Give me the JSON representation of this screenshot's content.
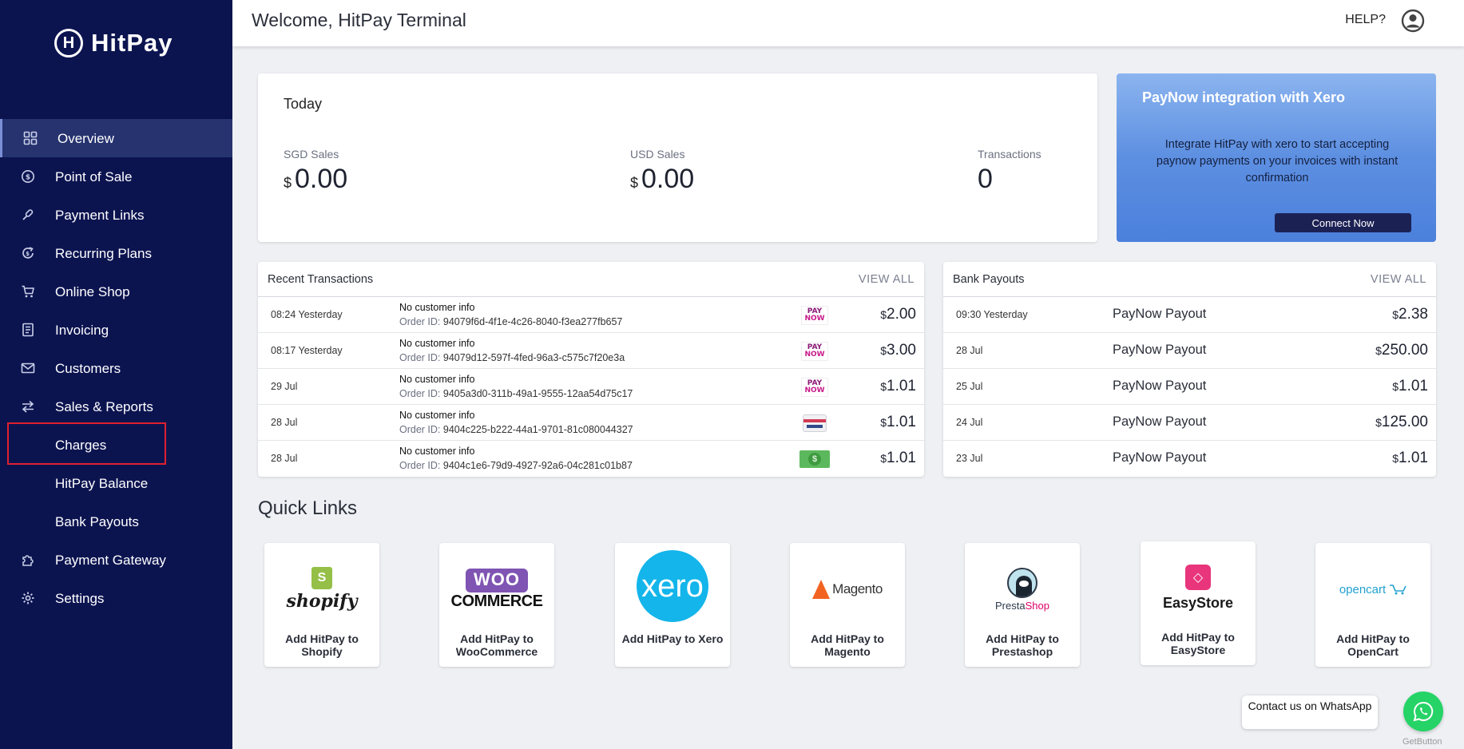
{
  "brand": {
    "name": "HitPay",
    "mark": "H"
  },
  "sidebar": {
    "items": [
      {
        "label": "Overview",
        "icon": "grid-icon",
        "active": true
      },
      {
        "label": "Point of Sale",
        "icon": "dollar-circle-icon"
      },
      {
        "label": "Payment Links",
        "icon": "link-icon"
      },
      {
        "label": "Recurring Plans",
        "icon": "recurring-icon"
      },
      {
        "label": "Online Shop",
        "icon": "cart-icon"
      },
      {
        "label": "Invoicing",
        "icon": "invoice-icon"
      },
      {
        "label": "Customers",
        "icon": "envelope-icon"
      },
      {
        "label": "Sales & Reports",
        "icon": "arrows-icon"
      },
      {
        "label": "Charges",
        "icon": "",
        "highlighted": true
      },
      {
        "label": "HitPay Balance",
        "icon": ""
      },
      {
        "label": "Bank Payouts",
        "icon": ""
      },
      {
        "label": "Payment Gateway",
        "icon": "puzzle-icon"
      },
      {
        "label": "Settings",
        "icon": "gear-icon"
      }
    ]
  },
  "header": {
    "title": "Welcome, HitPay Terminal",
    "help": "HELP?",
    "avatar_icon": "user-circle-icon"
  },
  "today": {
    "title": "Today",
    "stats": [
      {
        "label": "SGD Sales",
        "currency": "$",
        "value": "0.00"
      },
      {
        "label": "USD Sales",
        "currency": "$",
        "value": "0.00"
      },
      {
        "label": "Transactions",
        "currency": "",
        "value": "0"
      }
    ]
  },
  "promo": {
    "title": "PayNow integration with Xero",
    "body": "Integrate HitPay with xero to start accepting paynow payments on your invoices with instant confirmation",
    "button": "Connect Now"
  },
  "transactions": {
    "title": "Recent Transactions",
    "view_all": "VIEW ALL",
    "order_prefix": "Order ID:",
    "rows": [
      {
        "time": "08:24 Yesterday",
        "customer": "No customer info",
        "order_id": "94079f6d-4f1e-4c26-8040-f3ea277fb657",
        "method": "paynow",
        "currency": "$",
        "amount": "2.00"
      },
      {
        "time": "08:17 Yesterday",
        "customer": "No customer info",
        "order_id": "94079d12-597f-4fed-96a3-c575c7f20e3a",
        "method": "paynow",
        "currency": "$",
        "amount": "3.00"
      },
      {
        "time": "29 Jul",
        "customer": "No customer info",
        "order_id": "9405a3d0-311b-49a1-9555-12aa54d75c17",
        "method": "paynow",
        "currency": "$",
        "amount": "1.01"
      },
      {
        "time": "28 Jul",
        "customer": "No customer info",
        "order_id": "9404c225-b222-44a1-9701-81c080044327",
        "method": "card",
        "currency": "$",
        "amount": "1.01"
      },
      {
        "time": "28 Jul",
        "customer": "No customer info",
        "order_id": "9404c1e6-79d9-4927-92a6-04c281c01b87",
        "method": "cash",
        "currency": "$",
        "amount": "1.01"
      }
    ]
  },
  "payouts": {
    "title": "Bank Payouts",
    "view_all": "VIEW ALL",
    "rows": [
      {
        "time": "09:30 Yesterday",
        "label": "PayNow Payout",
        "currency": "$",
        "amount": "2.38"
      },
      {
        "time": "28 Jul",
        "label": "PayNow Payout",
        "currency": "$",
        "amount": "250.00"
      },
      {
        "time": "25 Jul",
        "label": "PayNow Payout",
        "currency": "$",
        "amount": "1.01"
      },
      {
        "time": "24 Jul",
        "label": "PayNow Payout",
        "currency": "$",
        "amount": "125.00"
      },
      {
        "time": "23 Jul",
        "label": "PayNow Payout",
        "currency": "$",
        "amount": "1.01"
      }
    ]
  },
  "paynow_logo": {
    "top": "PAY",
    "bottom": "NOW"
  },
  "quick_links": {
    "title": "Quick Links",
    "items": [
      {
        "key": "shopify",
        "label": "Add HitPay to Shopify",
        "logo_text": "shopify",
        "logo_mark": "S"
      },
      {
        "key": "woocommerce",
        "label": "Add HitPay to WooCommerce",
        "logo_text": "WOO",
        "logo_sub": "COMMERCE"
      },
      {
        "key": "xero",
        "label": "Add HitPay to Xero",
        "logo_text": "xero"
      },
      {
        "key": "magento",
        "label": "Add HitPay to Magento",
        "logo_text": "Magento"
      },
      {
        "key": "prestashop",
        "label": "Add HitPay to Prestashop",
        "logo_text": "Presta",
        "logo_sub": "Shop"
      },
      {
        "key": "easystore",
        "label": "Add HitPay to EasyStore",
        "logo_text": "EasyStore"
      },
      {
        "key": "opencart",
        "label": "Add HitPay to OpenCart",
        "logo_text": "opencart"
      }
    ]
  },
  "whatsapp": {
    "text": "Contact us on WhatsApp",
    "credit": "GetButton",
    "icon": "whatsapp-icon"
  }
}
